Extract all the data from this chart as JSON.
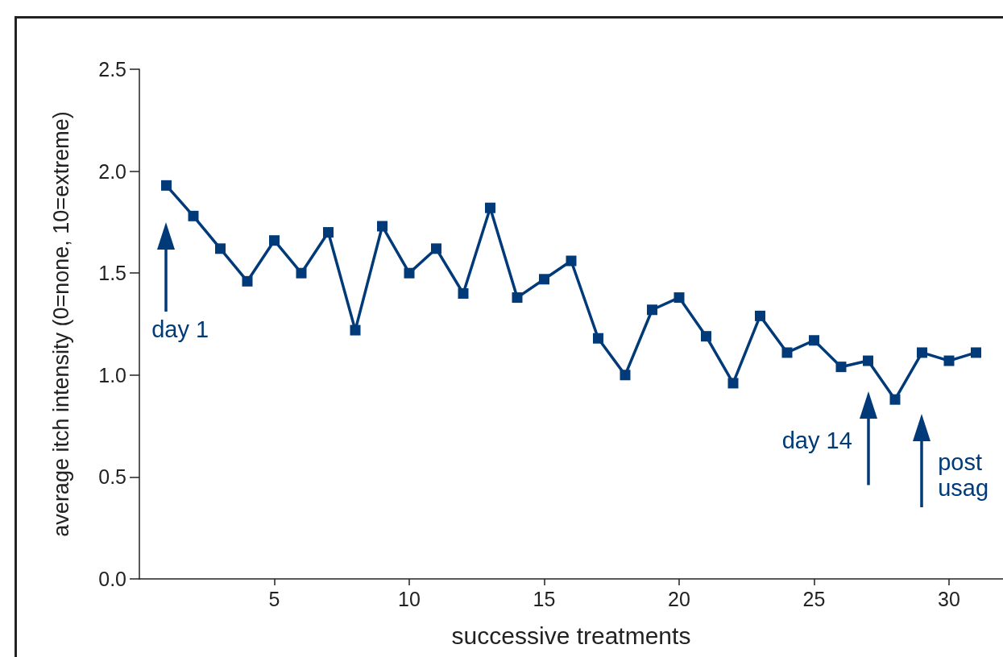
{
  "chart_data": {
    "type": "line",
    "xlabel": "successive treatments",
    "ylabel": "average itch intensity (0=none, 10=extreme)",
    "x": [
      1,
      2,
      3,
      4,
      5,
      6,
      7,
      8,
      9,
      10,
      11,
      12,
      13,
      14,
      15,
      16,
      17,
      18,
      19,
      20,
      21,
      22,
      23,
      24,
      25,
      26,
      27,
      28,
      29,
      30,
      31
    ],
    "series": [
      {
        "color": "#003a78",
        "values": [
          1.93,
          1.78,
          1.62,
          1.46,
          1.66,
          1.5,
          1.7,
          1.22,
          1.73,
          1.5,
          1.62,
          1.4,
          1.82,
          1.38,
          1.47,
          1.56,
          1.18,
          1.0,
          1.32,
          1.38,
          1.19,
          0.96,
          1.29,
          1.11,
          1.17,
          1.04,
          1.07,
          0.88,
          1.11,
          1.07,
          1.11
        ]
      }
    ],
    "xlim": [
      0,
      32
    ],
    "xticks": [
      5,
      10,
      15,
      20,
      25,
      30
    ],
    "ylim": [
      0,
      2.5
    ],
    "yticks": [
      {
        "value": 0,
        "label": "0.0"
      },
      {
        "value": 0.5,
        "label": "0.5"
      },
      {
        "value": 1,
        "label": "1.0"
      },
      {
        "value": 1.5,
        "label": "1.5"
      },
      {
        "value": 2,
        "label": "2.0"
      },
      {
        "value": 2.5,
        "label": "2.5"
      }
    ],
    "annotations": [
      "day 1",
      "day 14",
      "post\nusag"
    ],
    "grid": false,
    "marker": "square",
    "line_style": "solid"
  }
}
